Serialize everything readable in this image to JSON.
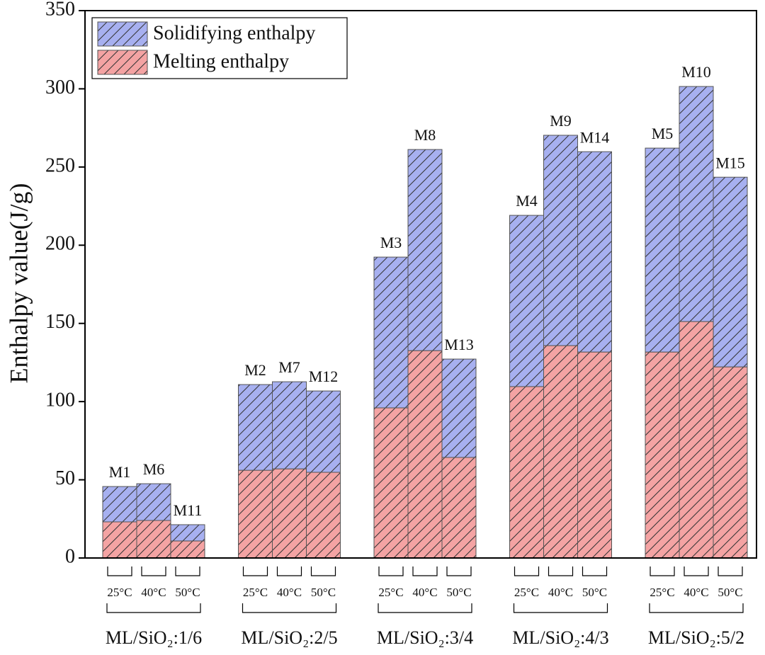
{
  "chart_data": {
    "type": "stacked_bar",
    "y_label": "Enthalpy value(J/g)",
    "ylim": [
      0,
      350
    ],
    "yticks": [
      0,
      50,
      100,
      150,
      200,
      250,
      300,
      350
    ],
    "groups": [
      "ML/SiO₂:1/6",
      "ML/SiO₂:2/5",
      "ML/SiO₂:3/4",
      "ML/SiO₂:4/3",
      "ML/SiO₂:5/2"
    ],
    "categories": [
      "25°C",
      "40°C",
      "50°C",
      "25°C",
      "40°C",
      "50°C",
      "25°C",
      "40°C",
      "50°C",
      "25°C",
      "40°C",
      "50°C",
      "25°C",
      "40°C",
      "50°C"
    ],
    "bar_labels": [
      "M1",
      "M6",
      "M11",
      "M2",
      "M7",
      "M12",
      "M3",
      "M8",
      "M13",
      "M4",
      "M9",
      "M14",
      "M5",
      "M10",
      "M15"
    ],
    "series": [
      {
        "name": "Melting enthalpy",
        "color": "#f4a3a3",
        "values": [
          23.1,
          24.0,
          10.9,
          56.1,
          57.0,
          54.8,
          96.0,
          132.6,
          64.3,
          109.6,
          135.8,
          131.7,
          131.7,
          151.2,
          122.2
        ]
      },
      {
        "name": "Solidifying enthalpy",
        "color": "#a7b0f0",
        "values": [
          22.6,
          23.5,
          10.4,
          54.8,
          55.7,
          52.0,
          96.4,
          128.6,
          62.9,
          109.5,
          134.5,
          128.1,
          130.4,
          150.3,
          121.3
        ]
      }
    ],
    "hatch": true,
    "legend_position": "upper left"
  }
}
